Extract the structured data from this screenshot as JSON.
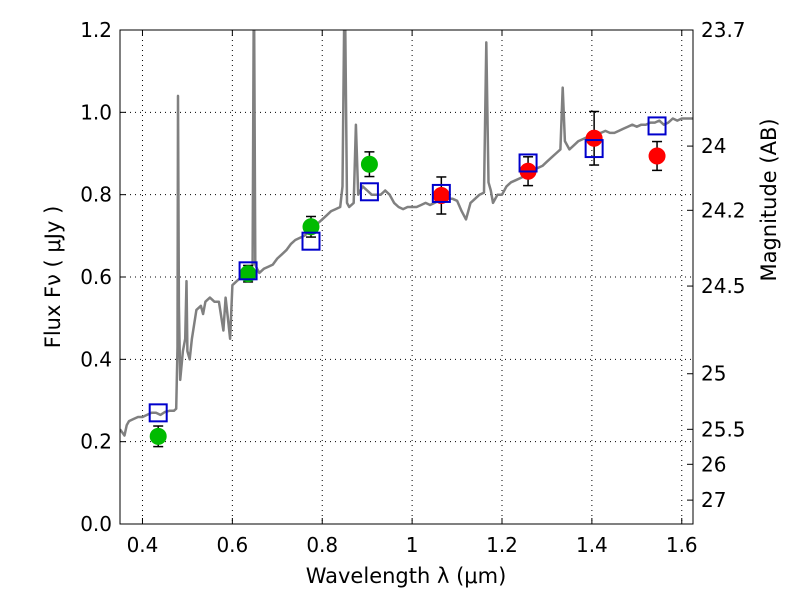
{
  "chart_data": {
    "type": "scatter",
    "xlabel": "Wavelength  λ (μm)",
    "ylabel": "Flux  Fν  ( μJy )",
    "ylabel_right": "Magnitude (AB)",
    "xlim": [
      0.35,
      1.625
    ],
    "ylim": [
      0.0,
      1.2
    ],
    "grid": true,
    "x_ticks": [
      0.4,
      0.6,
      0.8,
      1.0,
      1.2,
      1.4,
      1.6
    ],
    "x_tick_labels": [
      "0.4",
      "0.6",
      "0.8",
      "1",
      "1.2",
      "1.4",
      "1.6"
    ],
    "y_ticks": [
      0.0,
      0.2,
      0.4,
      0.6,
      0.8,
      1.0,
      1.2
    ],
    "y_tick_labels": [
      "0.0",
      "0.2",
      "0.4",
      "0.6",
      "0.8",
      "1.0",
      "1.2"
    ],
    "right_ticks": [
      {
        "label": "23.7",
        "flux": 1.2
      },
      {
        "label": "24",
        "flux": 0.918
      },
      {
        "label": "24.2",
        "flux": 0.762
      },
      {
        "label": "24.5",
        "flux": 0.578
      },
      {
        "label": "25",
        "flux": 0.365
      },
      {
        "label": "25.5",
        "flux": 0.23
      },
      {
        "label": "26",
        "flux": 0.145
      },
      {
        "label": "27",
        "flux": 0.058
      }
    ],
    "series": [
      {
        "color": "#00bb00",
        "marker": "circle",
        "points": [
          {
            "x": 0.435,
            "y": 0.213,
            "err": 0.025
          },
          {
            "x": 0.635,
            "y": 0.608,
            "err": 0.02
          },
          {
            "x": 0.775,
            "y": 0.722,
            "err": 0.025
          },
          {
            "x": 0.905,
            "y": 0.874,
            "err": 0.03
          }
        ]
      },
      {
        "color": "#ff0000",
        "marker": "circle",
        "points": [
          {
            "x": 1.065,
            "y": 0.798,
            "err": 0.045
          },
          {
            "x": 1.258,
            "y": 0.857,
            "err": 0.035
          },
          {
            "x": 1.405,
            "y": 0.937,
            "err": 0.065
          },
          {
            "x": 1.545,
            "y": 0.894,
            "err": 0.035
          }
        ]
      },
      {
        "color": "#0000cc",
        "marker": "open-square",
        "points": [
          {
            "x": 0.435,
            "y": 0.27
          },
          {
            "x": 0.635,
            "y": 0.615
          },
          {
            "x": 0.775,
            "y": 0.687
          },
          {
            "x": 0.905,
            "y": 0.807
          },
          {
            "x": 1.065,
            "y": 0.803
          },
          {
            "x": 1.258,
            "y": 0.877
          },
          {
            "x": 1.405,
            "y": 0.912
          },
          {
            "x": 1.545,
            "y": 0.967
          }
        ]
      }
    ],
    "spectrum": {
      "color": "#808080",
      "points": [
        [
          0.35,
          0.23
        ],
        [
          0.36,
          0.215
        ],
        [
          0.365,
          0.24
        ],
        [
          0.37,
          0.25
        ],
        [
          0.38,
          0.255
        ],
        [
          0.39,
          0.26
        ],
        [
          0.4,
          0.26
        ],
        [
          0.41,
          0.265
        ],
        [
          0.42,
          0.27
        ],
        [
          0.43,
          0.27
        ],
        [
          0.44,
          0.265
        ],
        [
          0.45,
          0.272
        ],
        [
          0.46,
          0.275
        ],
        [
          0.47,
          0.275
        ],
        [
          0.475,
          0.28
        ],
        [
          0.478,
          0.43
        ],
        [
          0.479,
          1.04
        ],
        [
          0.481,
          0.53
        ],
        [
          0.484,
          0.35
        ],
        [
          0.49,
          0.42
        ],
        [
          0.495,
          0.45
        ],
        [
          0.498,
          0.59
        ],
        [
          0.5,
          0.42
        ],
        [
          0.505,
          0.4
        ],
        [
          0.51,
          0.45
        ],
        [
          0.52,
          0.52
        ],
        [
          0.53,
          0.53
        ],
        [
          0.535,
          0.51
        ],
        [
          0.54,
          0.54
        ],
        [
          0.55,
          0.55
        ],
        [
          0.56,
          0.54
        ],
        [
          0.57,
          0.54
        ],
        [
          0.58,
          0.47
        ],
        [
          0.585,
          0.55
        ],
        [
          0.59,
          0.5
        ],
        [
          0.595,
          0.45
        ],
        [
          0.6,
          0.58
        ],
        [
          0.61,
          0.59
        ],
        [
          0.62,
          0.6
        ],
        [
          0.63,
          0.6
        ],
        [
          0.64,
          0.61
        ],
        [
          0.645,
          0.63
        ],
        [
          0.648,
          1.35
        ],
        [
          0.651,
          0.63
        ],
        [
          0.655,
          0.62
        ],
        [
          0.66,
          0.61
        ],
        [
          0.67,
          0.62
        ],
        [
          0.68,
          0.625
        ],
        [
          0.69,
          0.63
        ],
        [
          0.7,
          0.645
        ],
        [
          0.71,
          0.655
        ],
        [
          0.72,
          0.665
        ],
        [
          0.73,
          0.68
        ],
        [
          0.74,
          0.69
        ],
        [
          0.75,
          0.695
        ],
        [
          0.76,
          0.7
        ],
        [
          0.77,
          0.71
        ],
        [
          0.78,
          0.72
        ],
        [
          0.79,
          0.73
        ],
        [
          0.8,
          0.74
        ],
        [
          0.81,
          0.75
        ],
        [
          0.82,
          0.76
        ],
        [
          0.83,
          0.765
        ],
        [
          0.84,
          0.77
        ],
        [
          0.845,
          0.82
        ],
        [
          0.85,
          1.35
        ],
        [
          0.855,
          0.78
        ],
        [
          0.86,
          0.77
        ],
        [
          0.87,
          0.78
        ],
        [
          0.875,
          0.97
        ],
        [
          0.88,
          0.8
        ],
        [
          0.885,
          0.81
        ],
        [
          0.89,
          0.82
        ],
        [
          0.9,
          0.81
        ],
        [
          0.91,
          0.8
        ],
        [
          0.92,
          0.8
        ],
        [
          0.93,
          0.8
        ],
        [
          0.94,
          0.81
        ],
        [
          0.95,
          0.8
        ],
        [
          0.96,
          0.78
        ],
        [
          0.97,
          0.77
        ],
        [
          0.98,
          0.765
        ],
        [
          0.99,
          0.77
        ],
        [
          1.0,
          0.77
        ],
        [
          1.01,
          0.77
        ],
        [
          1.02,
          0.775
        ],
        [
          1.03,
          0.78
        ],
        [
          1.04,
          0.775
        ],
        [
          1.05,
          0.78
        ],
        [
          1.06,
          0.785
        ],
        [
          1.07,
          0.79
        ],
        [
          1.08,
          0.79
        ],
        [
          1.09,
          0.79
        ],
        [
          1.1,
          0.785
        ],
        [
          1.11,
          0.76
        ],
        [
          1.12,
          0.74
        ],
        [
          1.125,
          0.76
        ],
        [
          1.13,
          0.78
        ],
        [
          1.14,
          0.79
        ],
        [
          1.15,
          0.8
        ],
        [
          1.16,
          0.805
        ],
        [
          1.165,
          1.17
        ],
        [
          1.17,
          0.83
        ],
        [
          1.175,
          0.81
        ],
        [
          1.18,
          0.78
        ],
        [
          1.19,
          0.8
        ],
        [
          1.2,
          0.8
        ],
        [
          1.21,
          0.82
        ],
        [
          1.22,
          0.83
        ],
        [
          1.23,
          0.835
        ],
        [
          1.24,
          0.84
        ],
        [
          1.25,
          0.845
        ],
        [
          1.26,
          0.855
        ],
        [
          1.27,
          0.86
        ],
        [
          1.28,
          0.865
        ],
        [
          1.29,
          0.87
        ],
        [
          1.3,
          0.88
        ],
        [
          1.31,
          0.89
        ],
        [
          1.32,
          0.9
        ],
        [
          1.33,
          0.91
        ],
        [
          1.335,
          1.06
        ],
        [
          1.34,
          0.93
        ],
        [
          1.35,
          0.91
        ],
        [
          1.36,
          0.92
        ],
        [
          1.37,
          0.93
        ],
        [
          1.38,
          0.935
        ],
        [
          1.39,
          0.94
        ],
        [
          1.4,
          0.94
        ],
        [
          1.41,
          0.95
        ],
        [
          1.42,
          0.95
        ],
        [
          1.43,
          0.955
        ],
        [
          1.44,
          0.95
        ],
        [
          1.45,
          0.95
        ],
        [
          1.46,
          0.955
        ],
        [
          1.47,
          0.96
        ],
        [
          1.48,
          0.965
        ],
        [
          1.49,
          0.97
        ],
        [
          1.5,
          0.965
        ],
        [
          1.51,
          0.97
        ],
        [
          1.52,
          0.97
        ],
        [
          1.53,
          0.975
        ],
        [
          1.54,
          0.975
        ],
        [
          1.55,
          0.98
        ],
        [
          1.56,
          0.97
        ],
        [
          1.57,
          0.975
        ],
        [
          1.58,
          0.985
        ],
        [
          1.59,
          0.98
        ],
        [
          1.6,
          0.985
        ],
        [
          1.61,
          0.985
        ],
        [
          1.625,
          0.985
        ]
      ]
    }
  }
}
